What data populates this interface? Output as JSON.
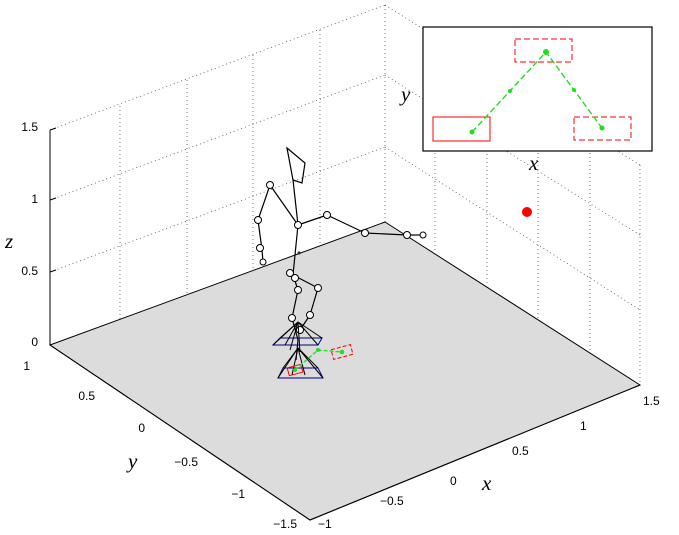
{
  "axes": {
    "z_label": "z",
    "y_label": "y",
    "x_label": "x",
    "z_ticks": [
      "1.5",
      "1",
      "0.5",
      "0"
    ],
    "y_ticks": [
      "1",
      "0.5",
      "0",
      "−0.5",
      "−1",
      "−1.5"
    ],
    "x_ticks": [
      "−1",
      "−0.5",
      "0",
      "0.5",
      "1",
      "1.5"
    ]
  },
  "inset": {
    "x_label": "x",
    "y_label": "y"
  },
  "colors": {
    "floor": "#dcdcdc",
    "skeleton": "#000000",
    "trajectory": "#22dd22",
    "target_box": "#ff0000",
    "target_marker": "#ff0000",
    "joint_end": "#000080"
  }
}
